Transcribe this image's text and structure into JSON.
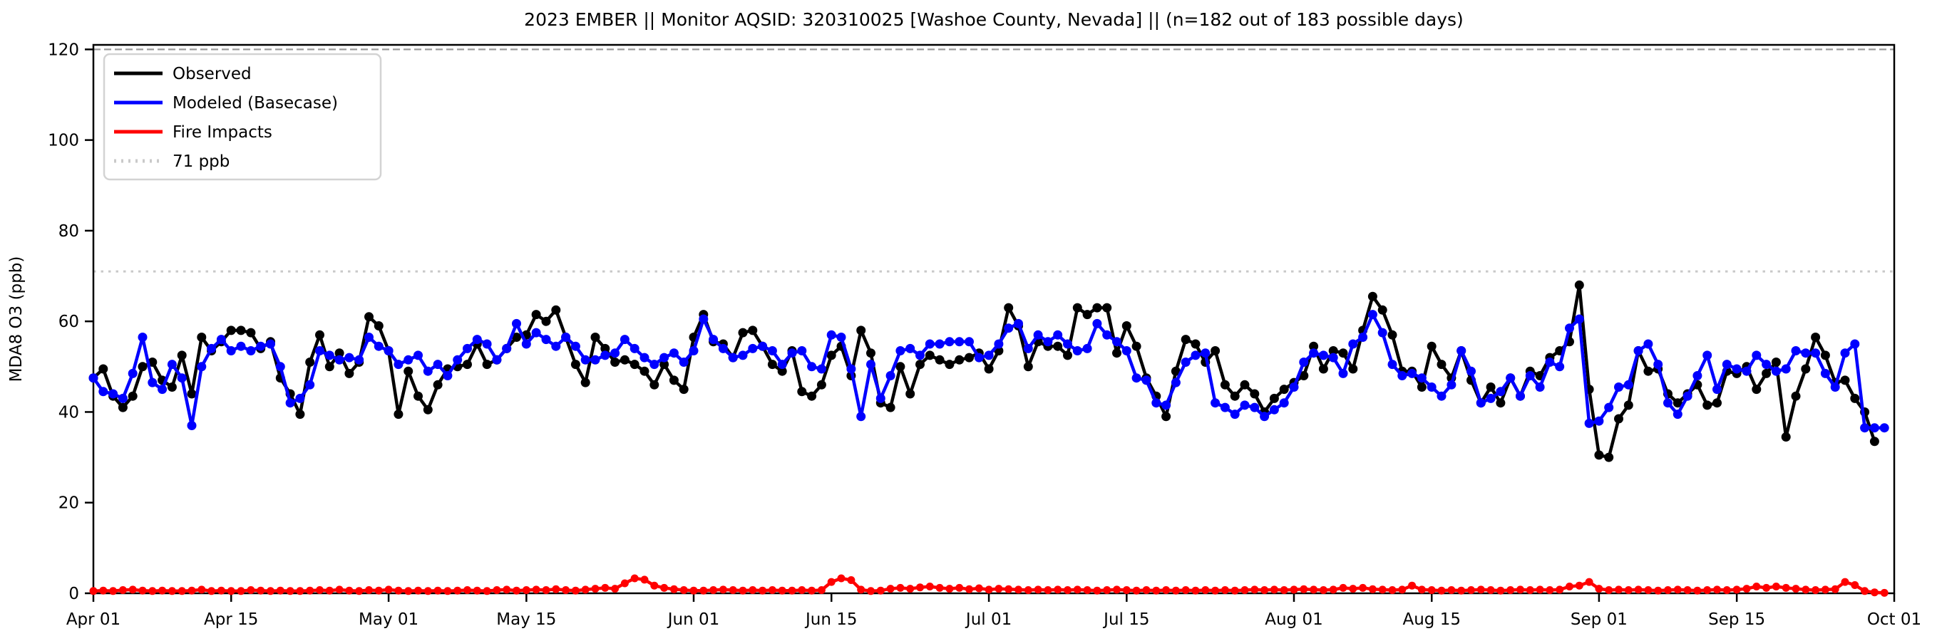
{
  "chart_data": {
    "type": "line",
    "title": "2023 EMBER || Monitor AQSID: 320310025 [Washoe County, Nevada] || (n=182 out of 183 possible days)",
    "xlabel": "",
    "ylabel": "MDA8 O3 (ppb)",
    "ylim": [
      0,
      121
    ],
    "yticks": [
      0,
      20,
      40,
      60,
      80,
      100,
      120
    ],
    "x_axis": {
      "unit": "daily values, day index 0 = Apr 01, day index 182 = Sep 30, axis ends Oct 01",
      "n_days": 183,
      "tick_days": [
        0,
        14,
        30,
        44,
        61,
        75,
        91,
        105,
        122,
        136,
        153,
        167,
        183
      ],
      "tick_labels": [
        "Apr 01",
        "Apr 15",
        "May 01",
        "May 15",
        "Jun 01",
        "Jun 15",
        "Jul 01",
        "Jul 15",
        "Aug 01",
        "Aug 15",
        "Sep 01",
        "Sep 15",
        "Oct 01"
      ]
    },
    "grid": false,
    "legend_position": "upper left",
    "legend": [
      {
        "label": "Observed",
        "color": "#000000",
        "style": "solid"
      },
      {
        "label": "Modeled (Basecase)",
        "color": "#0000ff",
        "style": "solid"
      },
      {
        "label": "Fire Impacts",
        "color": "#ff0000",
        "style": "solid"
      },
      {
        "label": "71 ppb",
        "color": "#c9c9c9",
        "style": "dotted"
      }
    ],
    "reference_lines": [
      {
        "label": "71 ppb",
        "value": 71,
        "color": "#c9c9c9",
        "style": "dotted"
      },
      {
        "label": "120 ppb",
        "value": 120,
        "color": "#9a9a9a",
        "style": "dashed"
      }
    ],
    "series": [
      {
        "name": "Observed",
        "color": "#000000",
        "marker": "circle",
        "values": [
          47.5,
          49.5,
          43.5,
          41,
          43.5,
          50,
          51,
          47,
          45.5,
          52.5,
          44,
          56.5,
          53.5,
          55.5,
          58,
          58,
          57.5,
          54,
          55.5,
          47.5,
          44,
          39.5,
          51,
          57,
          50,
          53,
          48.5,
          51,
          61,
          59,
          53.5,
          39.5,
          49,
          43.5,
          40.5,
          46,
          49.5,
          50,
          50.5,
          55,
          50.5,
          51.5,
          54,
          56.5,
          57,
          61.5,
          60,
          62.5,
          56.5,
          50.5,
          46.5,
          56.5,
          54,
          51,
          51.5,
          50.5,
          49,
          46,
          50.5,
          47,
          45,
          56.5,
          61.5,
          55.5,
          55,
          52,
          57.5,
          58,
          54.5,
          50.5,
          49,
          53.5,
          44.5,
          43.5,
          46,
          52.5,
          54.5,
          48,
          58,
          53,
          42,
          41,
          50,
          44,
          50.5,
          52.5,
          51.5,
          50.5,
          51.5,
          52,
          53,
          49.5,
          53.5,
          63,
          59,
          50,
          55.5,
          54.5,
          54.5,
          52.5,
          63,
          61.5,
          63,
          63,
          53,
          59,
          54.5,
          47.5,
          43.5,
          39,
          49,
          56,
          55,
          51,
          53.5,
          46,
          43.5,
          46,
          44,
          40,
          43,
          45,
          46.5,
          48,
          54.5,
          49.5,
          53.5,
          53,
          49.5,
          58,
          65.5,
          62.5,
          57,
          49,
          49,
          45.5,
          54.5,
          50.5,
          47.5,
          53.5,
          47,
          42,
          45.5,
          42,
          47.5,
          43.5,
          49,
          48,
          52,
          53.5,
          55.5,
          68,
          45,
          30.5,
          30,
          38.5,
          41.5,
          53.5,
          49,
          49.5,
          44,
          42,
          44,
          46,
          41.5,
          42,
          49,
          48.5,
          50,
          45,
          48.5,
          51,
          34.5,
          43.5,
          49.5,
          56.5,
          52.5,
          46.5,
          47,
          43,
          40,
          33.5,
          null
        ]
      },
      {
        "name": "Modeled (Basecase)",
        "color": "#0000ff",
        "marker": "circle",
        "values": [
          47.5,
          44.5,
          44,
          43,
          48.5,
          56.5,
          46.5,
          45,
          50.5,
          47.5,
          37,
          50,
          54,
          56,
          53.5,
          54.5,
          53.5,
          54.5,
          55,
          50,
          42,
          43,
          46,
          53.5,
          52.5,
          51.5,
          52,
          51.5,
          56.5,
          54.5,
          53.5,
          50.5,
          51.5,
          52.5,
          49,
          50.5,
          48,
          51.5,
          54,
          56,
          55,
          51.5,
          54,
          59.5,
          55,
          57.5,
          56,
          54.5,
          56.5,
          54.5,
          51.5,
          51.5,
          52.5,
          53,
          56,
          54,
          52,
          50.5,
          52,
          53,
          51,
          53.5,
          60.5,
          56,
          54,
          52,
          52.5,
          54,
          54.5,
          53.5,
          50.5,
          53,
          53.5,
          50,
          49.5,
          57,
          56.5,
          49.5,
          39,
          50.5,
          43,
          48,
          53.5,
          54,
          52.5,
          55,
          55,
          55.5,
          55.5,
          55.5,
          52,
          52.5,
          55,
          58.5,
          59.5,
          54,
          57,
          55.5,
          57,
          55,
          53.5,
          54,
          59.5,
          57,
          55.5,
          53.5,
          47.5,
          47,
          42,
          41.5,
          46.5,
          51,
          52.5,
          53,
          42,
          41,
          39.5,
          41.5,
          41,
          39,
          40.5,
          42,
          45.5,
          51,
          53,
          52.5,
          52,
          48.5,
          55,
          56.5,
          61.5,
          57.5,
          50.5,
          48,
          48.5,
          47.5,
          45.5,
          43.5,
          46,
          53.5,
          49,
          42,
          43,
          44.5,
          47.5,
          43.5,
          48,
          45.5,
          51,
          50,
          58.5,
          60.5,
          37.5,
          38,
          41,
          45.5,
          46,
          53.5,
          55,
          50.5,
          42,
          39.5,
          43.5,
          48,
          52.5,
          45,
          50.5,
          49.5,
          49,
          52.5,
          50.5,
          49,
          49.5,
          53.5,
          53,
          53,
          48.5,
          45.5,
          53,
          55,
          36.5,
          36.5,
          36.5
        ]
      },
      {
        "name": "Fire Impacts",
        "color": "#ff0000",
        "marker": "circle",
        "values": [
          0.5,
          0.6,
          0.5,
          0.7,
          0.8,
          0.6,
          0.5,
          0.6,
          0.5,
          0.5,
          0.6,
          0.8,
          0.5,
          0.6,
          0.5,
          0.5,
          0.7,
          0.6,
          0.5,
          0.6,
          0.5,
          0.5,
          0.6,
          0.7,
          0.6,
          0.8,
          0.6,
          0.5,
          0.7,
          0.6,
          0.8,
          0.6,
          0.5,
          0.6,
          0.5,
          0.6,
          0.5,
          0.6,
          0.7,
          0.6,
          0.5,
          0.7,
          0.8,
          0.6,
          0.7,
          0.8,
          0.7,
          0.9,
          0.7,
          0.6,
          0.8,
          1.0,
          1.2,
          1.0,
          2.2,
          3.3,
          3.0,
          1.7,
          1.2,
          0.9,
          0.7,
          0.6,
          0.6,
          0.7,
          0.8,
          0.7,
          0.6,
          0.7,
          0.6,
          0.7,
          0.6,
          0.6,
          0.7,
          0.6,
          0.7,
          2.5,
          3.3,
          2.9,
          0.8,
          0.5,
          0.6,
          1.0,
          1.2,
          1.0,
          1.3,
          1.5,
          1.2,
          1.0,
          1.2,
          0.9,
          1.1,
          0.8,
          1.0,
          0.9,
          0.8,
          0.7,
          0.8,
          0.7,
          0.8,
          0.7,
          0.8,
          0.7,
          0.6,
          0.7,
          0.8,
          0.7,
          0.6,
          0.7,
          0.6,
          0.7,
          0.6,
          0.7,
          0.6,
          0.7,
          0.6,
          0.7,
          0.6,
          0.7,
          0.8,
          0.7,
          0.8,
          0.7,
          0.8,
          0.9,
          0.8,
          0.7,
          0.8,
          1.2,
          1.0,
          1.2,
          0.9,
          0.8,
          0.7,
          0.8,
          1.7,
          0.8,
          0.7,
          0.6,
          0.7,
          0.6,
          0.7,
          0.8,
          0.7,
          0.6,
          0.7,
          0.8,
          0.7,
          0.8,
          0.7,
          0.8,
          1.5,
          1.7,
          2.5,
          1.0,
          0.7,
          0.8,
          0.7,
          0.8,
          0.7,
          0.6,
          0.7,
          0.8,
          0.7,
          0.6,
          0.7,
          0.8,
          0.7,
          0.8,
          1.0,
          1.5,
          1.2,
          1.5,
          1.2,
          1.0,
          0.8,
          0.7,
          0.8,
          0.9,
          2.5,
          1.8,
          0.5,
          0.2,
          0.1
        ]
      }
    ]
  }
}
